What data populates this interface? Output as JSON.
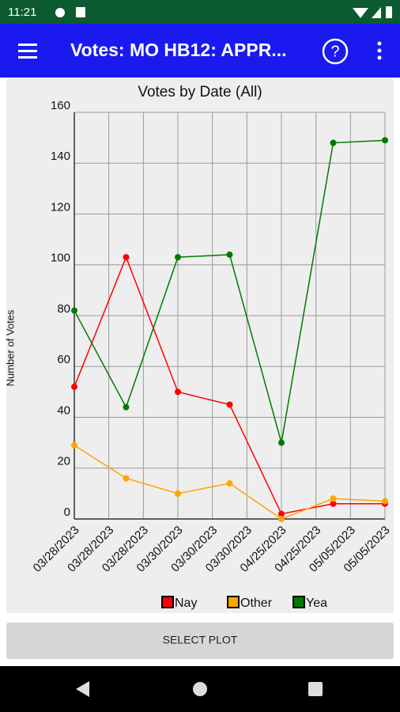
{
  "status_bar": {
    "time": "11:21"
  },
  "app_bar": {
    "title": "Votes: MO HB12: APPR..."
  },
  "chart_data": {
    "type": "line",
    "title": "Votes by Date (All)",
    "y_label": "Number of Votes",
    "x": [
      0,
      1.5,
      3,
      4.5,
      6,
      7.5,
      9
    ],
    "xlim": [
      0,
      9
    ],
    "xticks": [
      {
        "value": 0,
        "label": "03/28/2023"
      },
      {
        "value": 1,
        "label": "03/28/2023"
      },
      {
        "value": 2,
        "label": "03/28/2023"
      },
      {
        "value": 3,
        "label": "03/30/2023"
      },
      {
        "value": 4,
        "label": "03/30/2023"
      },
      {
        "value": 5,
        "label": "03/30/2023"
      },
      {
        "value": 6,
        "label": "04/25/2023"
      },
      {
        "value": 7,
        "label": "04/25/2023"
      },
      {
        "value": 8,
        "label": "05/05/2023"
      },
      {
        "value": 9,
        "label": "05/05/2023"
      }
    ],
    "ylim": [
      0,
      160
    ],
    "yticks": [
      0,
      20,
      40,
      60,
      80,
      100,
      120,
      140,
      160
    ],
    "grid": true,
    "legend": "bottom",
    "series": [
      {
        "name": "Nay",
        "color": "#ff0000",
        "values": [
          52,
          103,
          50,
          45,
          2,
          6,
          6
        ]
      },
      {
        "name": "Other",
        "color": "#ffa500",
        "values": [
          29,
          16,
          10,
          14,
          0,
          8,
          7
        ]
      },
      {
        "name": "Yea",
        "color": "#007a00",
        "values": [
          82,
          44,
          103,
          104,
          30,
          148,
          149
        ]
      }
    ]
  },
  "button": {
    "label": "SELECT PLOT"
  }
}
